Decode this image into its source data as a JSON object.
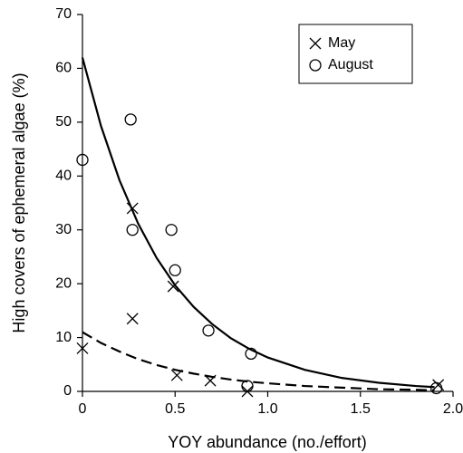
{
  "chart_data": {
    "type": "scatter",
    "xlabel": "YOY abundance (no./effort)",
    "ylabel": "High covers of ephemeral algae (%)",
    "xlim": [
      0,
      2.0
    ],
    "ylim": [
      0,
      70
    ],
    "xticks": [
      0,
      0.5,
      {
        "value": 1.0,
        "label": "1.0"
      },
      1.5,
      {
        "value": 2.0,
        "label": "2.0"
      }
    ],
    "yticks": [
      0,
      10,
      20,
      30,
      40,
      50,
      60,
      70
    ],
    "legend": "upper right",
    "series": [
      {
        "name": "May",
        "marker": "x",
        "color": "#000000",
        "x": [
          0,
          0.27,
          0.27,
          0.49,
          0.51,
          0.69,
          0.89,
          1.92
        ],
        "values": [
          8,
          13.5,
          34,
          19.5,
          3,
          2,
          0,
          1.2
        ]
      },
      {
        "name": "August",
        "marker": "circle",
        "color": "#000000",
        "x": [
          0,
          0.26,
          0.27,
          0.48,
          0.5,
          0.68,
          0.91,
          0.89,
          1.91
        ],
        "values": [
          43,
          50.5,
          30,
          30,
          22.5,
          11.3,
          7,
          1,
          0.6
        ]
      }
    ],
    "fits": [
      {
        "style": "solid",
        "color": "#000000",
        "x": [
          0,
          0.1,
          0.2,
          0.3,
          0.4,
          0.5,
          0.6,
          0.7,
          0.8,
          0.9,
          1.0,
          1.2,
          1.4,
          1.6,
          1.8,
          1.9
        ],
        "values": [
          62,
          49.3,
          39.2,
          31.2,
          24.8,
          19.7,
          15.7,
          12.5,
          9.9,
          7.9,
          6.3,
          4.0,
          2.5,
          1.6,
          1.0,
          0.8
        ]
      },
      {
        "style": "dashed",
        "color": "#000000",
        "x": [
          0,
          0.1,
          0.2,
          0.3,
          0.4,
          0.5,
          0.6,
          0.7,
          0.8,
          0.9,
          1.0,
          1.2,
          1.4,
          1.6,
          1.8,
          1.9
        ],
        "values": [
          11,
          9.0,
          7.4,
          6.0,
          4.9,
          4.0,
          3.3,
          2.7,
          2.2,
          1.8,
          1.5,
          1.0,
          0.7,
          0.4,
          0.3,
          0.2
        ]
      }
    ]
  }
}
